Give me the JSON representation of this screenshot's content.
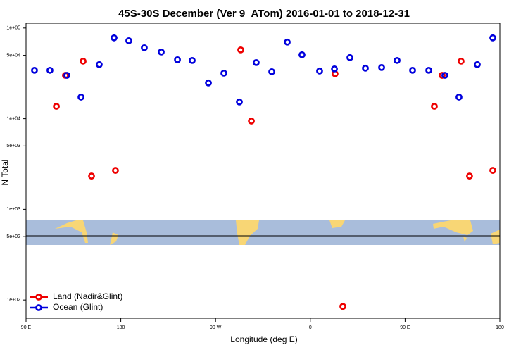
{
  "chart_data": {
    "type": "scatter",
    "title": "45S-30S December (Ver 9_ATom)   2016-01-01 to 2018-12-31",
    "x_label": "Longitude (deg E)",
    "y_label": "N Total",
    "log_y": true,
    "legend": "bottom-left",
    "xlim": [
      90,
      540
    ],
    "xticks": [
      {
        "value": 90,
        "label": "90 E"
      },
      {
        "value": 180,
        "label": "180"
      },
      {
        "value": 270,
        "label": "90 W"
      },
      {
        "value": 360,
        "label": "0"
      },
      {
        "value": 450,
        "label": "90 E"
      },
      {
        "value": 540,
        "label": "180"
      }
    ],
    "ylim": [
      63,
      113000
    ],
    "yticks": [
      {
        "value": 100,
        "label": "1e+02"
      },
      {
        "value": 500,
        "label": "5e+02"
      },
      {
        "value": 1000,
        "label": "1e+03"
      },
      {
        "value": 5000,
        "label": "5e+03"
      },
      {
        "value": 10000,
        "label": "1e+04"
      },
      {
        "value": 50000,
        "label": "5e+04"
      },
      {
        "value": 100000,
        "label": "1e+05"
      }
    ],
    "series": [
      {
        "name": "Land (Nadir&Glint)",
        "color": "#ee0000",
        "x": [
          118.8,
          127.4,
          144.2,
          152.2,
          174.9,
          293.9,
          304.0,
          383.5,
          390.9,
          477.8,
          485.2,
          503.2,
          511.2,
          533.3
        ],
        "values": [
          13700,
          30100,
          43100,
          2330,
          2690,
          57400,
          9420,
          31300,
          85,
          13700,
          30100,
          43100,
          2330,
          2690
        ]
      },
      {
        "name": "Ocean (Glint)",
        "color": "#0000dd",
        "x": [
          98.0,
          112.7,
          128.8,
          142.2,
          159.5,
          173.6,
          187.6,
          202.3,
          218.4,
          233.8,
          247.8,
          263.2,
          277.9,
          292.6,
          308.6,
          323.4,
          338.1,
          352.1,
          368.8,
          382.9,
          397.6,
          412.3,
          427.7,
          442.4,
          457.1,
          472.5,
          487.8,
          501.2,
          518.6,
          533.3
        ],
        "values": [
          34200,
          34200,
          30100,
          17300,
          39500,
          77900,
          72400,
          60600,
          54400,
          44700,
          43900,
          24800,
          31800,
          15300,
          41600,
          33000,
          70000,
          50700,
          33600,
          35400,
          47200,
          36100,
          36700,
          43900,
          34200,
          34200,
          30100,
          17300,
          39500,
          77900
        ]
      }
    ]
  }
}
